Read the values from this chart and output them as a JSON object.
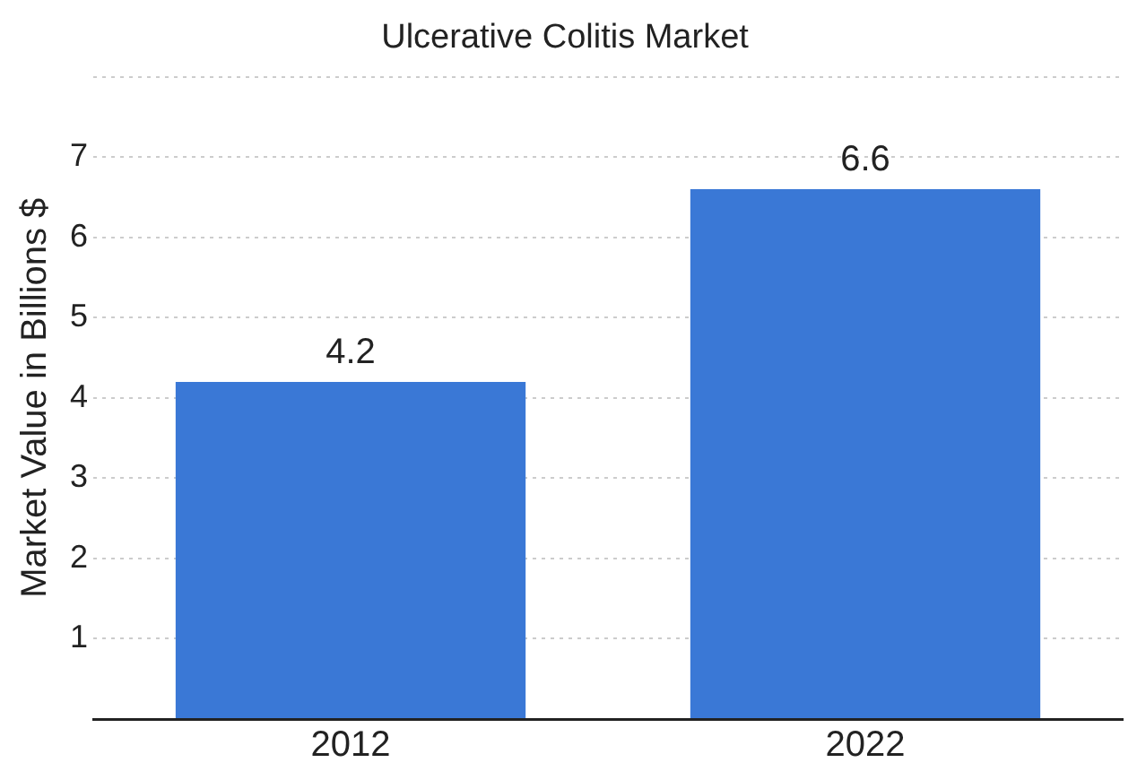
{
  "chart_data": {
    "type": "bar",
    "title": "Ulcerative Colitis Market",
    "ylabel": "Market Value in Billions $",
    "categories": [
      "2012",
      "2022"
    ],
    "values": [
      4.2,
      6.6
    ],
    "color": "#3a78d6",
    "ylim": [
      0,
      8
    ],
    "yticks": [
      {
        "value": 0,
        "label": null
      },
      1,
      2,
      3,
      4,
      5,
      6,
      7,
      {
        "value": 8,
        "label": null
      }
    ],
    "grid": "y",
    "data_labels": true
  }
}
